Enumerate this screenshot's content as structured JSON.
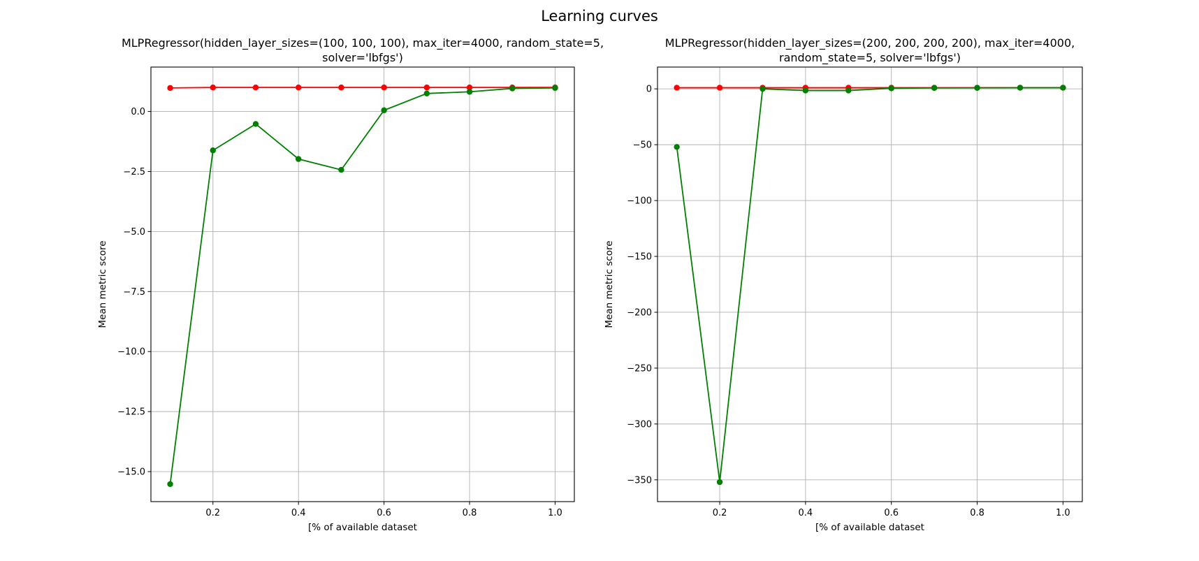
{
  "chart_data": {
    "suptitle": "Learning curves",
    "panels": [
      {
        "type": "line",
        "title_lines": [
          "MLPRegressor(hidden_layer_sizes=(100, 100, 100), max_iter=4000, random_state=5,",
          "solver='lbfgs')"
        ],
        "xlabel": "[% of available dataset",
        "ylabel": "Mean metric score",
        "xlim": [
          0.055,
          1.045
        ],
        "ylim": [
          -16.25,
          1.85
        ],
        "xticks": [
          0.2,
          0.4,
          0.6,
          0.8,
          1.0
        ],
        "xtick_labels": [
          "0.2",
          "0.4",
          "0.6",
          "0.8",
          "1.0"
        ],
        "yticks": [
          0.0,
          -2.5,
          -5.0,
          -7.5,
          -10.0,
          -12.5,
          -15.0
        ],
        "ytick_labels": [
          "0.0",
          "−2.5",
          "−5.0",
          "−7.5",
          "−10.0",
          "−12.5",
          "−15.0"
        ],
        "grid": true,
        "x": [
          0.1,
          0.2,
          0.3,
          0.4,
          0.5,
          0.6,
          0.7,
          0.8,
          0.9,
          1.0
        ],
        "series": [
          {
            "color": "#ff0000",
            "values": [
              0.98,
              1.0,
              1.0,
              1.0,
              1.0,
              1.0,
              1.0,
              1.0,
              1.0,
              1.0
            ]
          },
          {
            "color": "#008000",
            "values": [
              -15.52,
              -1.62,
              -0.52,
              -1.98,
              -2.43,
              0.05,
              0.75,
              0.82,
              0.96,
              0.98
            ]
          }
        ]
      },
      {
        "type": "line",
        "title_lines": [
          "MLPRegressor(hidden_layer_sizes=(200, 200, 200, 200), max_iter=4000,",
          "random_state=5, solver='lbfgs')"
        ],
        "xlabel": "[% of available dataset",
        "ylabel": "Mean metric score",
        "xlim": [
          0.055,
          1.045
        ],
        "ylim": [
          -369.5,
          19.5
        ],
        "xticks": [
          0.2,
          0.4,
          0.6,
          0.8,
          1.0
        ],
        "xtick_labels": [
          "0.2",
          "0.4",
          "0.6",
          "0.8",
          "1.0"
        ],
        "yticks": [
          0,
          -50,
          -100,
          -150,
          -200,
          -250,
          -300,
          -350
        ],
        "ytick_labels": [
          "0",
          "−50",
          "−100",
          "−150",
          "−200",
          "−250",
          "−300",
          "−350"
        ],
        "grid": true,
        "x": [
          0.1,
          0.2,
          0.3,
          0.4,
          0.5,
          0.6,
          0.7,
          0.8,
          0.9,
          1.0
        ],
        "series": [
          {
            "color": "#ff0000",
            "values": [
              1.0,
              1.0,
              1.0,
              1.0,
              1.0,
              1.0,
              1.0,
              1.0,
              1.0,
              1.0
            ]
          },
          {
            "color": "#008000",
            "values": [
              -52,
              -352,
              0.0,
              -1.5,
              -1.5,
              0.5,
              0.8,
              0.9,
              1.0,
              1.0
            ]
          }
        ]
      }
    ]
  }
}
